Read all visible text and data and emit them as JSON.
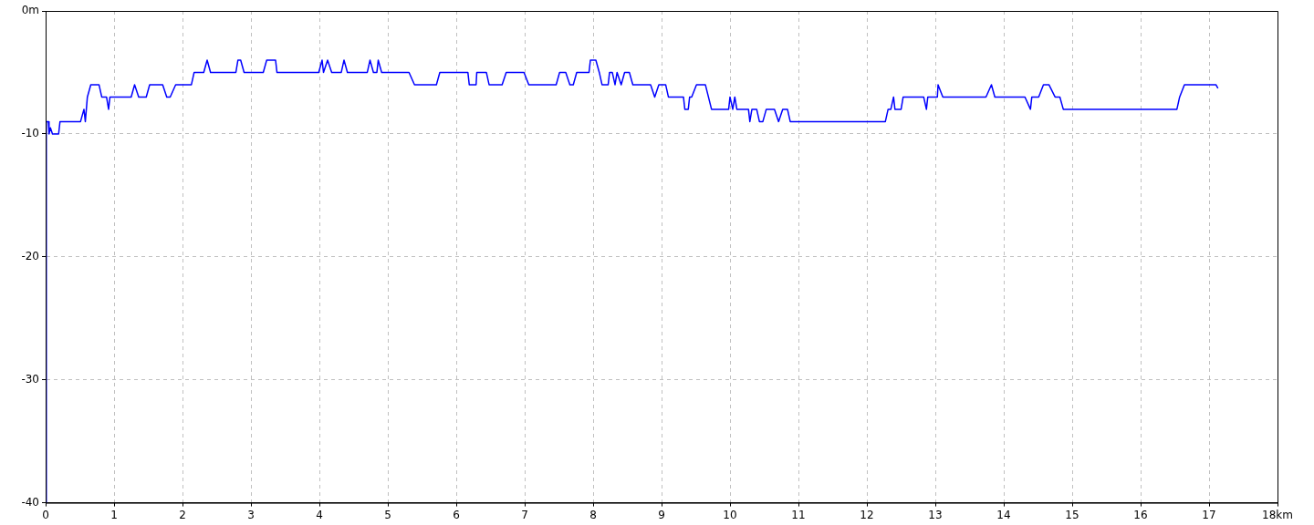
{
  "chart_data": {
    "type": "line",
    "x": [
      0,
      0.01,
      0.04,
      0.05,
      0.07,
      0.1,
      0.19,
      0.21,
      0.51,
      0.56,
      0.58,
      0.61,
      0.66,
      0.78,
      0.82,
      0.89,
      0.92,
      0.94,
      1.25,
      1.3,
      1.36,
      1.47,
      1.52,
      1.71,
      1.77,
      1.82,
      1.9,
      2.13,
      2.17,
      2.31,
      2.36,
      2.41,
      2.78,
      2.81,
      2.85,
      2.9,
      3.18,
      3.23,
      3.36,
      3.38,
      3.99,
      4.04,
      4.06,
      4.12,
      4.18,
      4.32,
      4.36,
      4.41,
      4.7,
      4.74,
      4.79,
      4.84,
      4.86,
      4.91,
      5.31,
      5.39,
      5.71,
      5.76,
      6.17,
      6.19,
      6.29,
      6.3,
      6.44,
      6.48,
      6.67,
      6.73,
      6.99,
      7.06,
      7.46,
      7.51,
      7.6,
      7.66,
      7.71,
      7.76,
      7.94,
      7.96,
      8.04,
      8.09,
      8.13,
      8.22,
      8.24,
      8.28,
      8.32,
      8.35,
      8.41,
      8.46,
      8.53,
      8.58,
      8.84,
      8.9,
      8.96,
      9.06,
      9.1,
      9.32,
      9.34,
      9.39,
      9.41,
      9.44,
      9.51,
      9.64,
      9.73,
      9.98,
      10.0,
      10.04,
      10.07,
      10.1,
      10.27,
      10.29,
      10.32,
      10.39,
      10.43,
      10.48,
      10.53,
      10.65,
      10.71,
      10.77,
      10.84,
      10.88,
      12.27,
      12.31,
      12.35,
      12.39,
      12.41,
      12.5,
      12.53,
      12.83,
      12.87,
      12.89,
      13.03,
      13.04,
      13.11,
      13.74,
      13.82,
      13.87,
      14.31,
      14.39,
      14.41,
      14.51,
      14.58,
      14.66,
      14.75,
      14.82,
      14.87,
      16.53,
      16.57,
      16.64,
      17.1,
      17.13
    ],
    "series": [
      {
        "color": "#0000ff",
        "values": [
          -40,
          -9,
          -9,
          -10,
          -9.5,
          -10,
          -10,
          -9,
          -9,
          -8,
          -9,
          -7,
          -6,
          -6,
          -7,
          -7,
          -8,
          -7,
          -7,
          -6,
          -7,
          -7,
          -6,
          -6,
          -7,
          -7,
          -6,
          -6,
          -5,
          -5,
          -4,
          -5,
          -5,
          -4,
          -4,
          -5,
          -5,
          -4,
          -4,
          -5,
          -5,
          -4,
          -5,
          -4,
          -5,
          -5,
          -4,
          -5,
          -5,
          -4,
          -5,
          -5,
          -4,
          -5,
          -5,
          -6,
          -6,
          -5,
          -5,
          -6,
          -6,
          -5,
          -5,
          -6,
          -6,
          -5,
          -5,
          -6,
          -6,
          -5,
          -5,
          -6,
          -6,
          -5,
          -5,
          -4,
          -4,
          -5,
          -6,
          -6,
          -5,
          -5,
          -6,
          -5,
          -6,
          -5,
          -5,
          -6,
          -6,
          -7,
          -6,
          -6,
          -7,
          -7,
          -8,
          -8,
          -7,
          -7,
          -6,
          -6,
          -8,
          -8,
          -7,
          -8,
          -7,
          -8,
          -8,
          -9,
          -8,
          -8,
          -9,
          -9,
          -8,
          -8,
          -9,
          -8,
          -8,
          -9,
          -9,
          -8,
          -8,
          -7,
          -8,
          -8,
          -7,
          -7,
          -8,
          -7,
          -7,
          -6,
          -7,
          -7,
          -6,
          -7,
          -7,
          -8,
          -7,
          -7,
          -6,
          -6,
          -7,
          -7,
          -8,
          -8,
          -7,
          -6,
          -6,
          -6.3
        ]
      }
    ],
    "xlim": [
      0,
      18
    ],
    "xticks": [
      0,
      1,
      2,
      3,
      4,
      5,
      6,
      7,
      8,
      9,
      10,
      11,
      12,
      13,
      14,
      15,
      16,
      17,
      {
        "value": 18,
        "label": "18km"
      }
    ],
    "ylim": [
      -40,
      0
    ],
    "yticks": [
      -40,
      -30,
      -20,
      -10,
      {
        "value": 0,
        "label": "0m"
      }
    ],
    "grid": true,
    "marker": "none",
    "line_style": "solid",
    "legend": false
  }
}
